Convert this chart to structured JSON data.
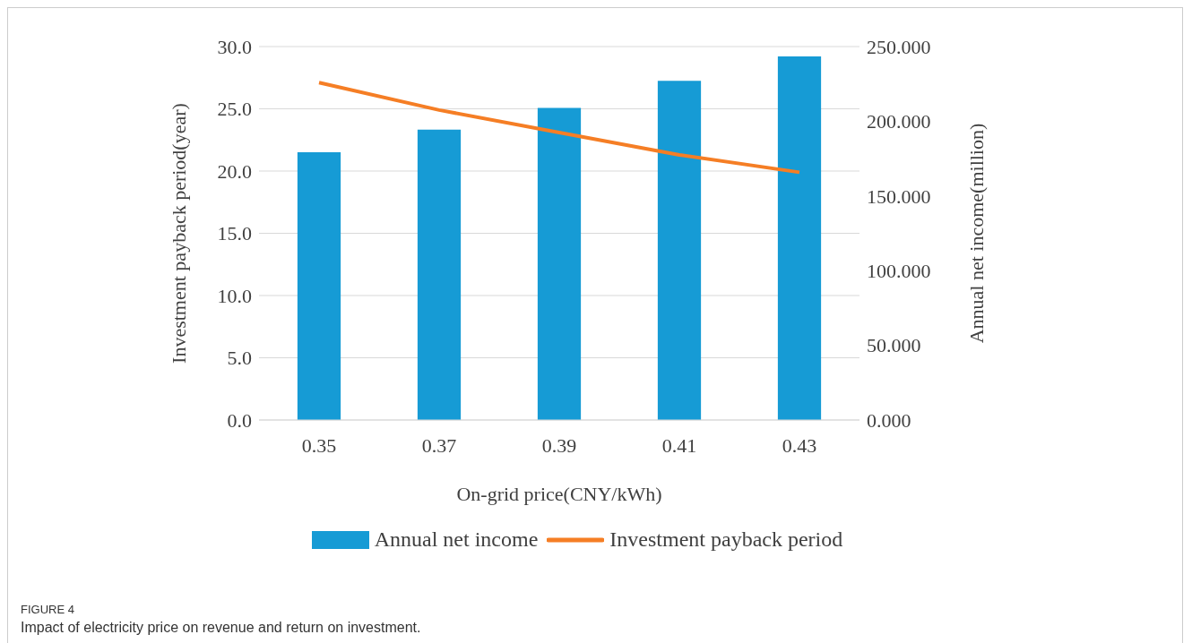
{
  "chart_data": {
    "type": "bar",
    "xlabel": "On-grid price(CNY/kWh)",
    "ylabel": "Investment payback period(year)",
    "y2label": "Annual net income(million)",
    "categories": [
      "0.35",
      "0.37",
      "0.39",
      "0.41",
      "0.43"
    ],
    "series": [
      {
        "name": "Annual net income",
        "axis": "y2",
        "color": "#169bd5",
        "values": [
          179.3,
          194.4,
          208.9,
          227.0,
          243.4
        ]
      },
      {
        "name": "Investment payback period",
        "type": "line",
        "axis": "y",
        "color": "#f57e25",
        "values": [
          27.1,
          24.9,
          23.1,
          21.3,
          19.9
        ]
      }
    ],
    "ylim": [
      0,
      30
    ],
    "yticks": [
      {
        "value": 0,
        "label": "0.0"
      },
      {
        "value": 5,
        "label": "5.0"
      },
      {
        "value": 10,
        "label": "10.0"
      },
      {
        "value": 15,
        "label": "15.0"
      },
      {
        "value": 20,
        "label": "20.0"
      },
      {
        "value": 25,
        "label": "25.0"
      },
      {
        "value": 30,
        "label": "30.0"
      }
    ],
    "y2lim": [
      0,
      250
    ],
    "y2ticks": [
      {
        "value": 0,
        "label": "0.000"
      },
      {
        "value": 50,
        "label": "50.000"
      },
      {
        "value": 100,
        "label": "100.000"
      },
      {
        "value": 150,
        "label": "150.000"
      },
      {
        "value": 200,
        "label": "200.000"
      },
      {
        "value": 250,
        "label": "250.000"
      }
    ],
    "grid": "y",
    "legend": "bottom",
    "marker": "none",
    "annotations": [
      "FIGURE 4",
      "Impact of electricity price on revenue and return on investment."
    ]
  }
}
